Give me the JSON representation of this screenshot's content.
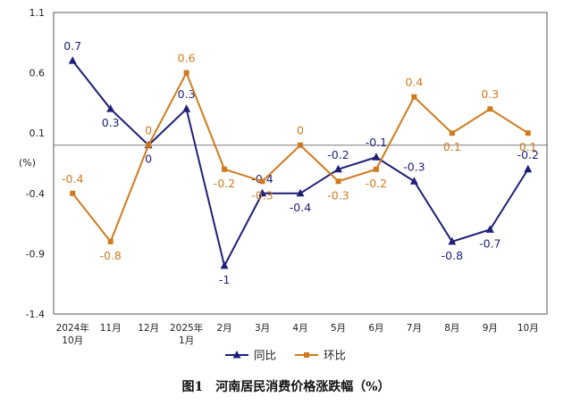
{
  "chart_data": {
    "type": "line",
    "title": "图1　河南居民消费价格涨跌幅（%）",
    "ylabel": "(%)",
    "xlabel": "",
    "ylim": [
      -1.4,
      1.1
    ],
    "yticks": [
      1.1,
      0.6,
      0.1,
      -0.4,
      -0.9,
      -1.4
    ],
    "ytick_labels": [
      "1.1",
      "0.6",
      "0.1",
      "-0.4",
      "-0.9",
      "-1.4"
    ],
    "categories": [
      [
        "2024年",
        "10月"
      ],
      [
        "11月"
      ],
      [
        "12月"
      ],
      [
        "2025年",
        "1月"
      ],
      [
        "2月"
      ],
      [
        "3月"
      ],
      [
        "4月"
      ],
      [
        "5月"
      ],
      [
        "6月"
      ],
      [
        "7月"
      ],
      [
        "8月"
      ],
      [
        "9月"
      ],
      [
        "10月"
      ]
    ],
    "reference_line": 0,
    "series": [
      {
        "name": "同比",
        "color": "#1f1f7a",
        "marker": "triangle",
        "values": [
          0.7,
          0.3,
          0,
          0.3,
          -1,
          -0.4,
          -0.4,
          -0.2,
          -0.1,
          -0.3,
          -0.8,
          -0.7,
          -0.2
        ],
        "labels": [
          "0.7",
          "0.3",
          "0",
          "0.3",
          "-1",
          "-0.4",
          "-0.4",
          "-0.2",
          "-0.1",
          "-0.3",
          "-0.8",
          "-0.7",
          "-0.2"
        ]
      },
      {
        "name": "环比",
        "color": "#d07a1e",
        "marker": "square",
        "values": [
          -0.4,
          -0.8,
          0,
          0.6,
          -0.2,
          -0.3,
          0,
          -0.3,
          -0.2,
          0.4,
          0.1,
          0.3,
          0.1
        ],
        "labels": [
          "-0.4",
          "-0.8",
          "0",
          "0.6",
          "-0.2",
          "-0.3",
          "0",
          "-0.3",
          "-0.2",
          "0.4",
          "0.1",
          "0.3",
          "0.1"
        ]
      }
    ]
  }
}
